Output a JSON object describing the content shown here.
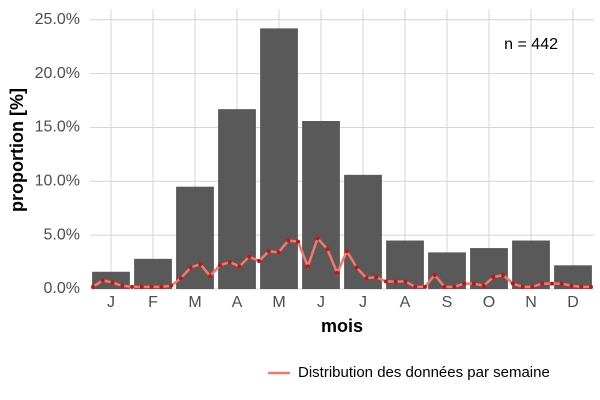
{
  "chart_data": {
    "type": "bar",
    "categories": [
      "J",
      "F",
      "M",
      "A",
      "M",
      "J",
      "J",
      "A",
      "S",
      "O",
      "N",
      "D"
    ],
    "values": [
      1.6,
      2.8,
      9.5,
      16.7,
      24.2,
      15.6,
      10.6,
      4.5,
      3.4,
      3.8,
      4.5,
      2.2
    ],
    "color": "#595959",
    "line": {
      "name": "Distribution des données par semaine",
      "color": "#f8766d",
      "point_color": "#cc1111",
      "values": [
        0.2,
        0.8,
        0.6,
        0.3,
        0.2,
        0.2,
        0.2,
        0.2,
        0.3,
        1.0,
        2.0,
        2.3,
        1.2,
        2.2,
        2.5,
        2.1,
        3.0,
        2.6,
        3.5,
        3.4,
        4.5,
        4.4,
        2.1,
        4.7,
        3.7,
        1.5,
        3.5,
        2.0,
        1.0,
        1.1,
        0.7,
        0.7,
        0.7,
        0.2,
        0.2,
        1.3,
        0.2,
        0.2,
        0.5,
        0.5,
        0.3,
        1.1,
        1.3,
        0.5,
        0.2,
        0.2,
        0.5,
        0.5,
        0.5,
        0.3,
        0.2,
        0.2
      ]
    },
    "xlabel": "mois",
    "ylabel": "proportion [%]",
    "annotation": "n = 442",
    "ylim": [
      0,
      26
    ],
    "yticks": [
      {
        "value": 0,
        "label": "0.0%"
      },
      {
        "value": 5,
        "label": "5.0%"
      },
      {
        "value": 10,
        "label": "10.0%"
      },
      {
        "value": 15,
        "label": "15.0%"
      },
      {
        "value": 20,
        "label": "20.0%"
      },
      {
        "value": 25,
        "label": "25.0%"
      }
    ],
    "grid": true
  }
}
